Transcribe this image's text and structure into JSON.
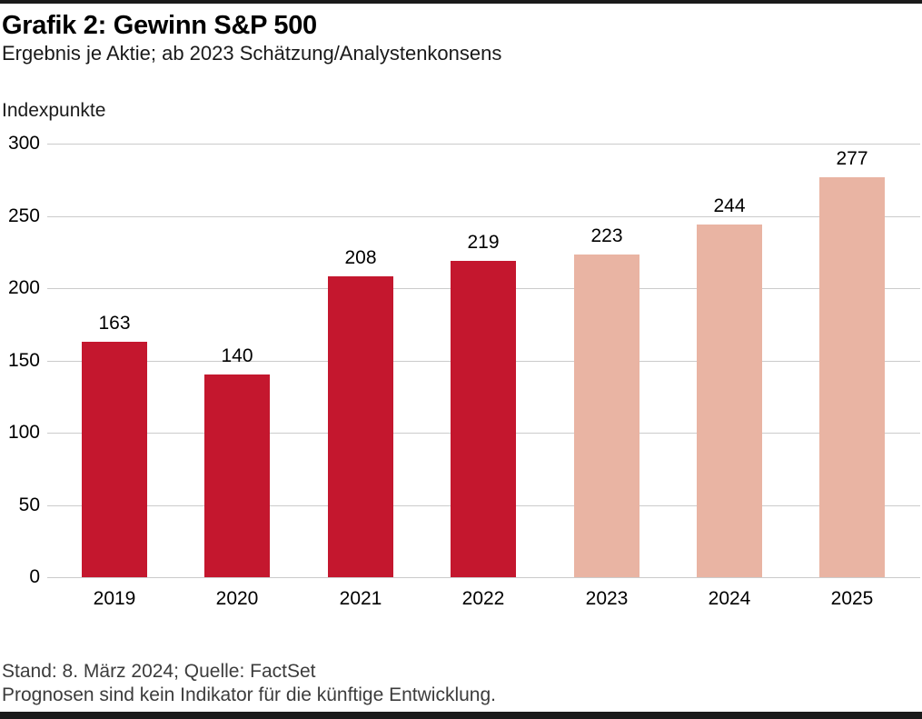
{
  "header": {
    "title": "Grafik 2: Gewinn S&P 500",
    "subtitle": "Ergebnis je Aktie; ab 2023 Schätzung/Analystenkonsens"
  },
  "chart_data": {
    "type": "bar",
    "title": "Grafik 2: Gewinn S&P 500",
    "subtitle": "Ergebnis je Aktie; ab 2023 Schätzung/Analystenkonsens",
    "ylabel": "Indexpunkte",
    "xlabel": "",
    "categories": [
      "2019",
      "2020",
      "2021",
      "2022",
      "2023",
      "2024",
      "2025"
    ],
    "values": [
      163,
      140,
      208,
      219,
      223,
      244,
      277
    ],
    "bar_styles": [
      "actual",
      "actual",
      "actual",
      "actual",
      "estimate",
      "estimate",
      "estimate"
    ],
    "style_meaning": {
      "actual": "Ist-Werte 2019-2022",
      "estimate": "ab 2023 Schätzung/Analystenkonsens"
    },
    "colors": {
      "actual": "#c4172e",
      "estimate": "#e9b4a3",
      "gridline": "#cbcbcb",
      "text": "#000000"
    },
    "yticks": [
      0,
      50,
      100,
      150,
      200,
      250,
      300
    ],
    "ylim": [
      0,
      300
    ],
    "grid": true,
    "value_labels": true,
    "legend": "none"
  },
  "footer": {
    "line1": "Stand: 8. März 2024; Quelle: FactSet",
    "line2": "Prognosen sind kein Indikator für die künftige Entwicklung."
  }
}
